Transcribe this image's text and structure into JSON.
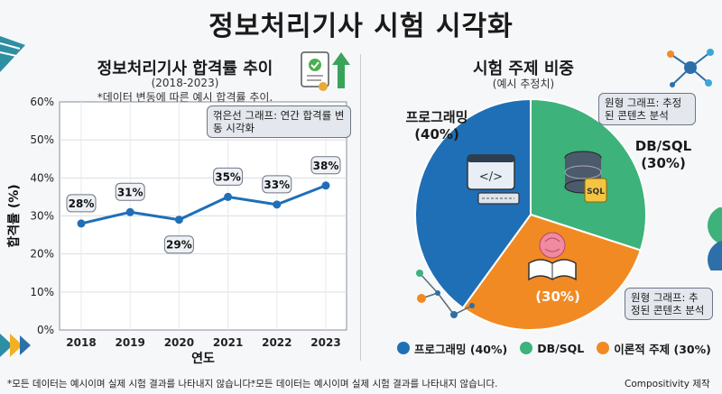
{
  "title": "정보처리기사 시험 시각화",
  "line_chart": {
    "title": "정보처리기사 합격률 추이",
    "subtitle": "(2018-2023)",
    "note": "*데이터 변동에 따른 예시 합격률 추이.",
    "callout": "꺾은선 그래프: 연간 합격률 변동 시각화",
    "accent": "#1f6fb7"
  },
  "pie_chart": {
    "title": "시험 주제 비중",
    "subtitle": "(예시 추정치)",
    "callout_db": "원형 그래프: 추정된 콘텐츠 분석",
    "callout_theory": "원형 그래프: 추정된 콘텐츠 분석",
    "label_prog_name": "프로그래밍",
    "label_prog_pct": "(40%)",
    "label_db_name": "DB/SQL",
    "label_db_pct": "(30%)",
    "label_theory_pct": "(30%)",
    "icons": [
      "code-window-icon",
      "database-icon",
      "brain-book-icon"
    ]
  },
  "legend": [
    {
      "label": "프로그래밍 (40%)",
      "color": "#1f6fb7"
    },
    {
      "label": "DB/SQL",
      "color": "#3db27a"
    },
    {
      "label": "이론적 주제 (30%)",
      "color": "#f28a24"
    }
  ],
  "footer": {
    "note1": "*모든 데이터는 예시이며 실제 시험 결과를 나타내지 않습니다.",
    "note2": "*모든 데이터는 예시이며 실제 시험 결과를 나타내지 않습니다.",
    "credit": "Compositivity 제작"
  },
  "chart_data": [
    {
      "type": "line",
      "title": "정보처리기사 합격률 추이",
      "subtitle": "(2018-2023)",
      "xlabel": "연도",
      "ylabel": "합격률 (%)",
      "categories": [
        "2018",
        "2019",
        "2020",
        "2021",
        "2022",
        "2023"
      ],
      "values": [
        28,
        31,
        29,
        35,
        33,
        38
      ],
      "data_labels": [
        "28%",
        "31%",
        "29%",
        "35%",
        "33%",
        "38%"
      ],
      "ylim": [
        0,
        60
      ],
      "yticks": [
        "0%",
        "10%",
        "20%",
        "30%",
        "40%",
        "50%",
        "60%"
      ],
      "grid": true,
      "color": "#1f6fb7"
    },
    {
      "type": "pie",
      "title": "시험 주제 비중",
      "subtitle": "(예시 추정치)",
      "categories": [
        "프로그래밍",
        "DB/SQL",
        "이론적 주제"
      ],
      "values": [
        40,
        30,
        30
      ],
      "colors": [
        "#1f6fb7",
        "#3db27a",
        "#f28a24"
      ]
    }
  ]
}
